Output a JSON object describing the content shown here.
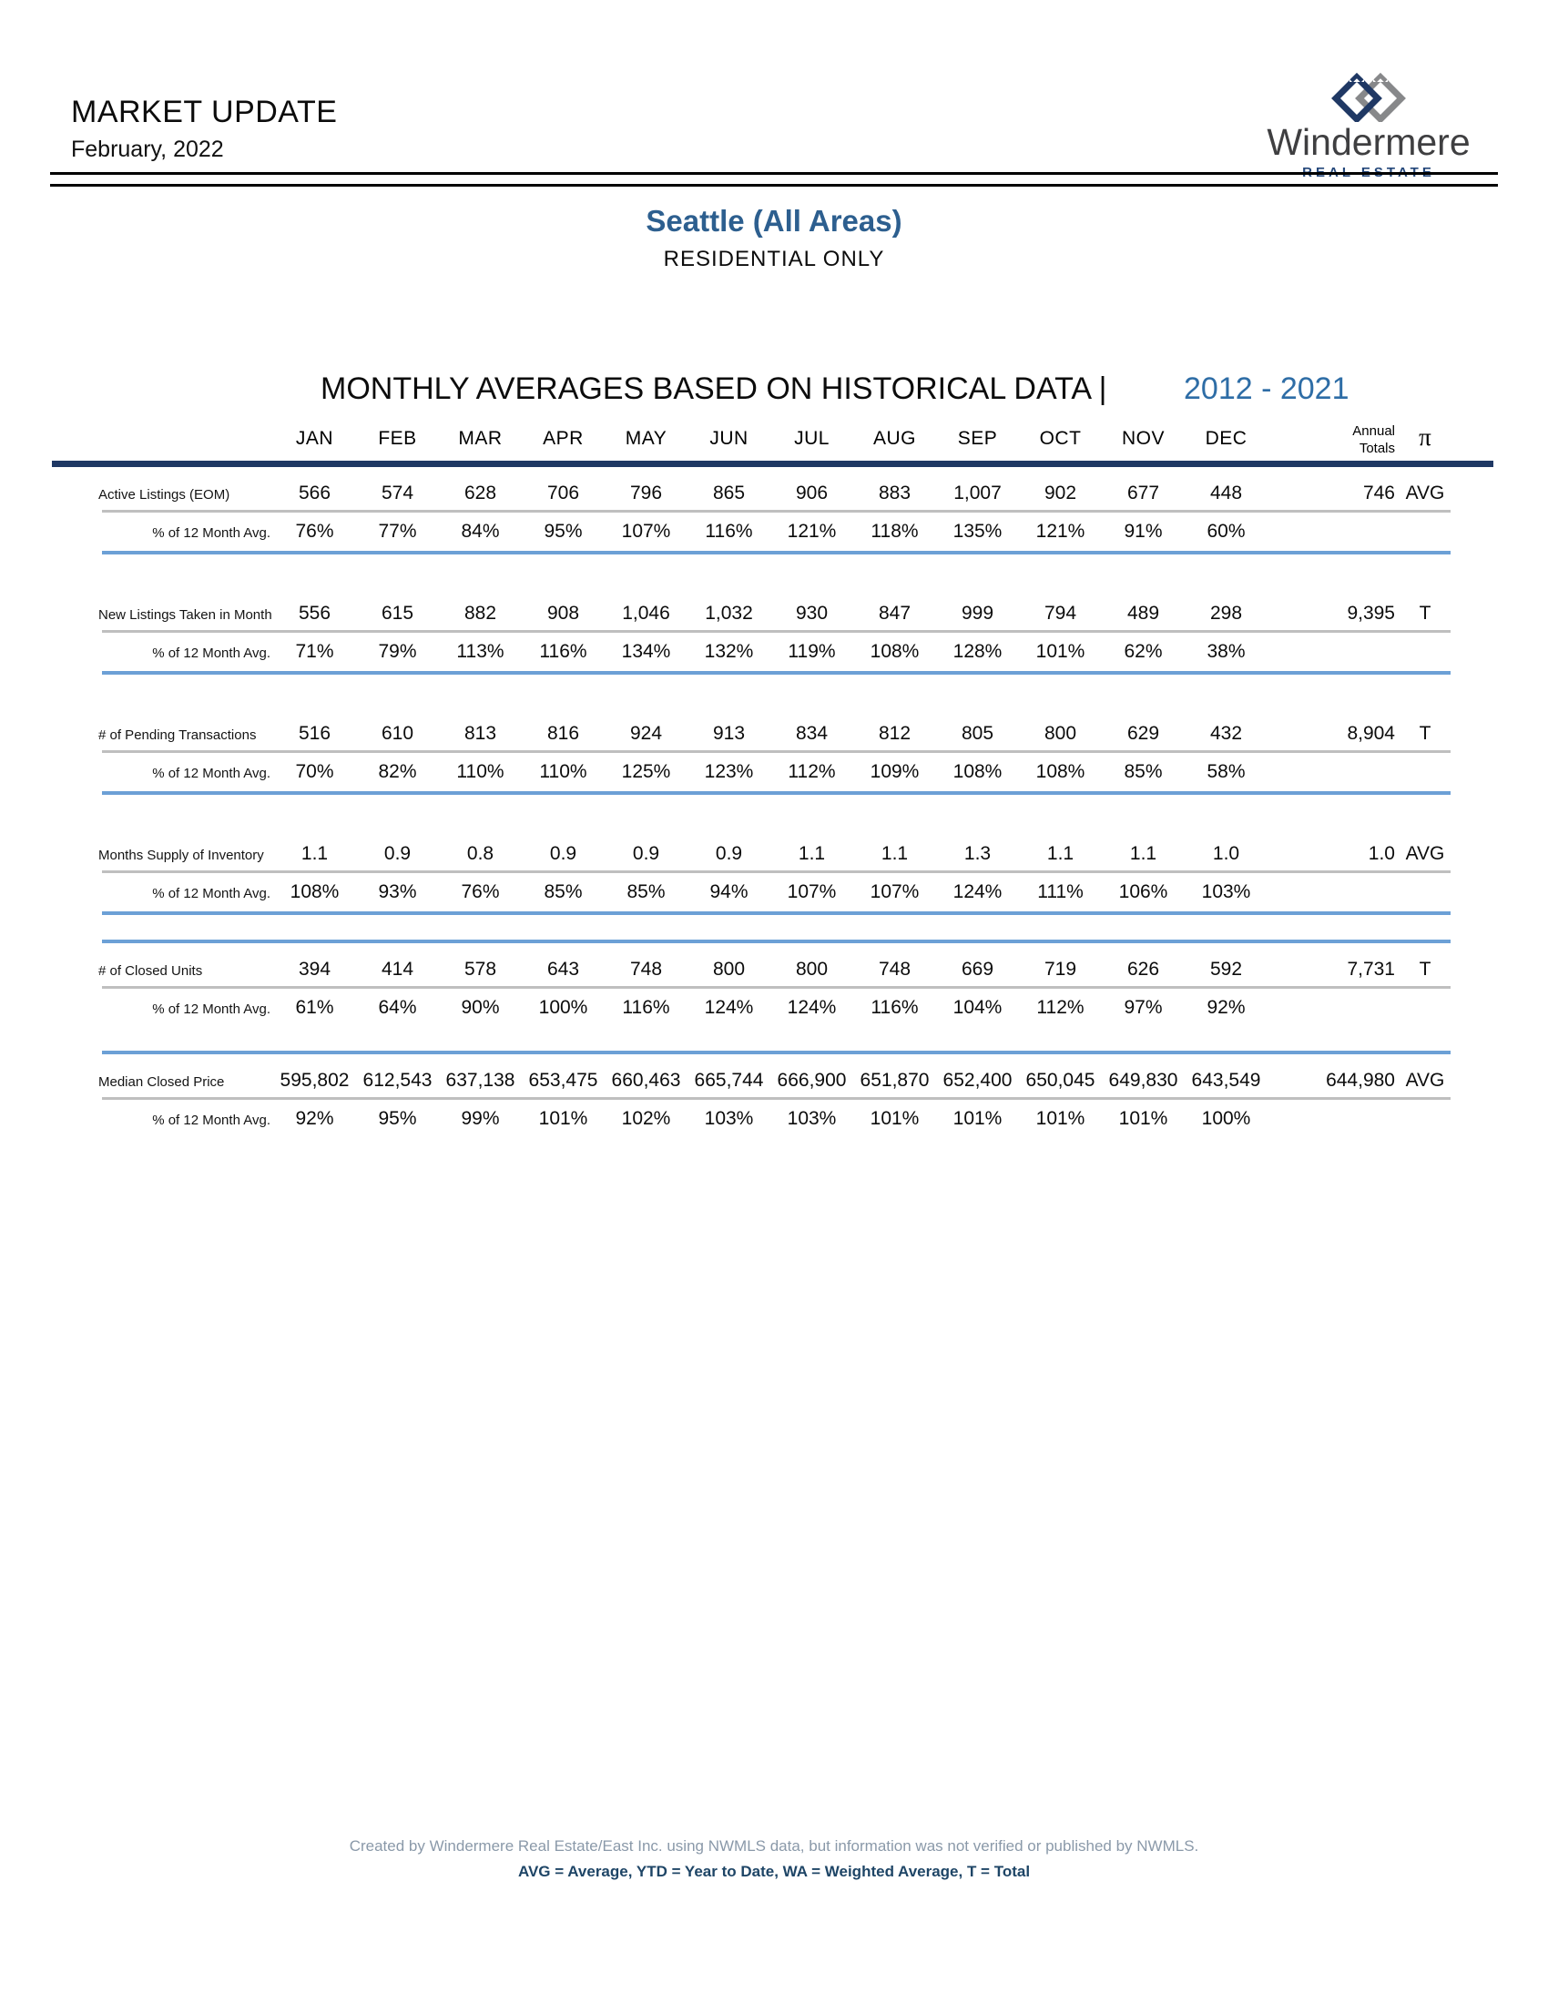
{
  "header": {
    "title": "MARKET UPDATE",
    "date": "February, 2022"
  },
  "logo": {
    "name": "Windermere",
    "subtitle": "REAL ESTATE"
  },
  "report": {
    "area_title": "Seattle (All Areas)",
    "subtitle": "RESIDENTIAL ONLY"
  },
  "table_title": {
    "text": "MONTHLY AVERAGES BASED ON HISTORICAL DATA |",
    "range": "2012 - 2021"
  },
  "table": {
    "columns": [
      "JAN",
      "FEB",
      "MAR",
      "APR",
      "MAY",
      "JUN",
      "JUL",
      "AUG",
      "SEP",
      "OCT",
      "NOV",
      "DEC"
    ],
    "annual_header": [
      "Annual",
      "Totals"
    ],
    "type_header": "π",
    "pct_label": "% of 12 Month Avg.",
    "sections": [
      {
        "label": "Active Listings (EOM)",
        "values": [
          "566",
          "574",
          "628",
          "706",
          "796",
          "865",
          "906",
          "883",
          "1,007",
          "902",
          "677",
          "448"
        ],
        "annual": "746",
        "type": "AVG",
        "pct": [
          "76%",
          "77%",
          "84%",
          "95%",
          "107%",
          "116%",
          "121%",
          "118%",
          "135%",
          "121%",
          "91%",
          "60%"
        ],
        "top_rule": false,
        "bottom_rule": true
      },
      {
        "label": "New Listings Taken in Month",
        "values": [
          "556",
          "615",
          "882",
          "908",
          "1,046",
          "1,032",
          "930",
          "847",
          "999",
          "794",
          "489",
          "298"
        ],
        "annual": "9,395",
        "type": "T",
        "pct": [
          "71%",
          "79%",
          "113%",
          "116%",
          "134%",
          "132%",
          "119%",
          "108%",
          "128%",
          "101%",
          "62%",
          "38%"
        ],
        "top_rule": false,
        "bottom_rule": true
      },
      {
        "label": "# of Pending Transactions",
        "values": [
          "516",
          "610",
          "813",
          "816",
          "924",
          "913",
          "834",
          "812",
          "805",
          "800",
          "629",
          "432"
        ],
        "annual": "8,904",
        "type": "T",
        "pct": [
          "70%",
          "82%",
          "110%",
          "110%",
          "125%",
          "123%",
          "112%",
          "109%",
          "108%",
          "108%",
          "85%",
          "58%"
        ],
        "top_rule": false,
        "bottom_rule": true
      },
      {
        "label": "Months Supply of Inventory",
        "values": [
          "1.1",
          "0.9",
          "0.8",
          "0.9",
          "0.9",
          "0.9",
          "1.1",
          "1.1",
          "1.3",
          "1.1",
          "1.1",
          "1.0"
        ],
        "annual": "1.0",
        "type": "AVG",
        "pct": [
          "108%",
          "93%",
          "76%",
          "85%",
          "85%",
          "94%",
          "107%",
          "107%",
          "124%",
          "111%",
          "106%",
          "103%"
        ],
        "top_rule": false,
        "bottom_rule": true
      },
      {
        "label": "# of Closed Units",
        "values": [
          "394",
          "414",
          "578",
          "643",
          "748",
          "800",
          "800",
          "748",
          "669",
          "719",
          "626",
          "592"
        ],
        "annual": "7,731",
        "type": "T",
        "pct": [
          "61%",
          "64%",
          "90%",
          "100%",
          "116%",
          "124%",
          "124%",
          "116%",
          "104%",
          "112%",
          "97%",
          "92%"
        ],
        "top_rule": true,
        "bottom_rule": false
      },
      {
        "label": "Median Closed Price",
        "values": [
          "595,802",
          "612,543",
          "637,138",
          "653,475",
          "660,463",
          "665,744",
          "666,900",
          "651,870",
          "652,400",
          "650,045",
          "649,830",
          "643,549"
        ],
        "annual": "644,980",
        "type": "AVG",
        "pct": [
          "92%",
          "95%",
          "99%",
          "101%",
          "102%",
          "103%",
          "103%",
          "101%",
          "101%",
          "101%",
          "101%",
          "100%"
        ],
        "top_rule": true,
        "bottom_rule": false
      }
    ]
  },
  "footer": {
    "line1": "Created by Windermere Real Estate/East Inc. using NWMLS data, but information was not verified or published by NWMLS.",
    "line2": "AVG = Average, YTD = Year to Date, WA = Weighted Average, T = Total"
  },
  "colors": {
    "area_title_blue": "#2d5f8f",
    "year_range_blue": "#2e6da6",
    "header_rule_navy": "#1f3864",
    "pct_rule_blue": "#6ca0d6",
    "value_rule_gray": "#bfbfbf",
    "footer_text_gray": "#8a99a9",
    "footer_legend_navy": "#1e4566",
    "logo_navy": "#24477a",
    "logo_gray": "#87888a",
    "logo_text_gray": "#3f3f41"
  }
}
